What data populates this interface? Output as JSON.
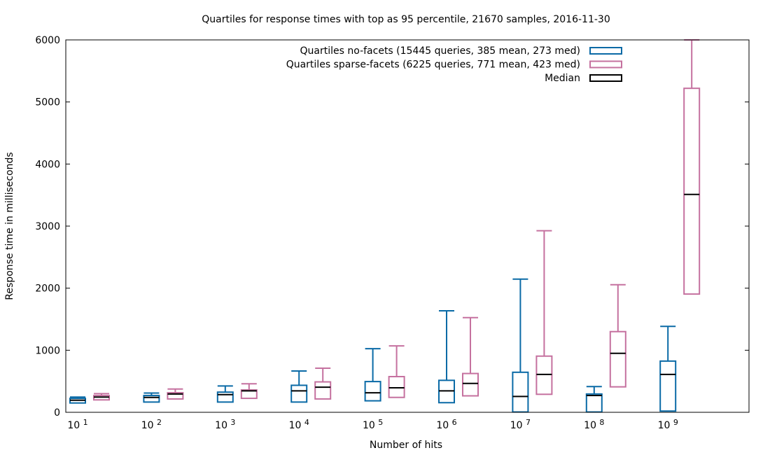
{
  "chart_data": {
    "type": "boxplot",
    "title": "Quartiles for response times with top as 95 percentile, 21670 samples, 2016-11-30",
    "xlabel": "Number of hits",
    "ylabel": "Response time in milliseconds",
    "ylim": [
      0,
      6000
    ],
    "yticks": [
      "0",
      "1000",
      "2000",
      "3000",
      "4000",
      "5000",
      "6000"
    ],
    "categories": [
      {
        "base": "10",
        "exp": "1"
      },
      {
        "base": "10",
        "exp": "2"
      },
      {
        "base": "10",
        "exp": "3"
      },
      {
        "base": "10",
        "exp": "4"
      },
      {
        "base": "10",
        "exp": "5"
      },
      {
        "base": "10",
        "exp": "6"
      },
      {
        "base": "10",
        "exp": "7"
      },
      {
        "base": "10",
        "exp": "8"
      },
      {
        "base": "10",
        "exp": "9"
      }
    ],
    "legend_position": "top-right",
    "series": [
      {
        "name": "Quartiles no-facets (15445 queries, 385 mean, 273 med)",
        "color": "#0a6aa6",
        "boxes": [
          {
            "min": 150,
            "q1": 150,
            "median": 195,
            "q3": 225,
            "max": 245
          },
          {
            "min": 165,
            "q1": 165,
            "median": 240,
            "q3": 270,
            "max": 310
          },
          {
            "min": 165,
            "q1": 165,
            "median": 285,
            "q3": 325,
            "max": 425
          },
          {
            "min": 165,
            "q1": 165,
            "median": 345,
            "q3": 435,
            "max": 665
          },
          {
            "min": 185,
            "q1": 185,
            "median": 315,
            "q3": 495,
            "max": 1025
          },
          {
            "min": 155,
            "q1": 155,
            "median": 345,
            "q3": 515,
            "max": 1635
          },
          {
            "min": 5,
            "q1": 5,
            "median": 255,
            "q3": 645,
            "max": 2145
          },
          {
            "min": 5,
            "q1": 5,
            "median": 270,
            "q3": 295,
            "max": 415
          },
          {
            "min": 20,
            "q1": 20,
            "median": 610,
            "q3": 825,
            "max": 1385
          }
        ]
      },
      {
        "name": "Quartiles sparse-facets (6225 queries, 771 mean, 423 med)",
        "color": "#c5719f",
        "boxes": [
          {
            "min": 200,
            "q1": 200,
            "median": 245,
            "q3": 270,
            "max": 300
          },
          {
            "min": 215,
            "q1": 215,
            "median": 295,
            "q3": 315,
            "max": 375
          },
          {
            "min": 225,
            "q1": 225,
            "median": 345,
            "q3": 360,
            "max": 460
          },
          {
            "min": 215,
            "q1": 215,
            "median": 405,
            "q3": 490,
            "max": 710
          },
          {
            "min": 240,
            "q1": 240,
            "median": 395,
            "q3": 575,
            "max": 1070
          },
          {
            "min": 265,
            "q1": 265,
            "median": 465,
            "q3": 625,
            "max": 1525
          },
          {
            "min": 290,
            "q1": 290,
            "median": 610,
            "q3": 905,
            "max": 2925
          },
          {
            "min": 410,
            "q1": 410,
            "median": 950,
            "q3": 1300,
            "max": 2055
          },
          {
            "min": 1905,
            "q1": 1905,
            "median": 3510,
            "q3": 5220,
            "max": 6000
          }
        ]
      }
    ],
    "median_legend": {
      "name": "Median",
      "color": "#000000"
    }
  }
}
